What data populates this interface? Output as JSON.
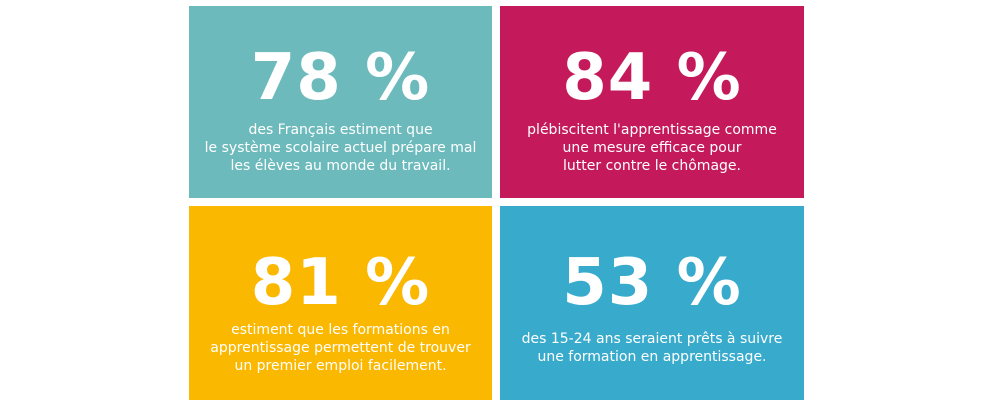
{
  "tiles": [
    {
      "value": "78 %",
      "lines": [
        "des Français estiment que",
        "le système scolaire actuel prépare mal",
        "les élèves au monde du travail."
      ],
      "color": "#6dbabd"
    },
    {
      "value": "84 %",
      "lines": [
        "plébiscitent l'apprentissage comme",
        "une mesure efficace pour",
        "lutter contre le chômage."
      ],
      "color": "#c4195a"
    },
    {
      "value": "81 %",
      "lines": [
        "estiment que les formations en",
        "apprentissage permettent de trouver",
        "un premier emploi facilement."
      ],
      "color": "#fbb800"
    },
    {
      "value": "53 %",
      "lines": [
        "des 15-24 ans seraient prêts à suivre",
        "une formation en apprentissage."
      ],
      "color": "#38abcd"
    }
  ]
}
